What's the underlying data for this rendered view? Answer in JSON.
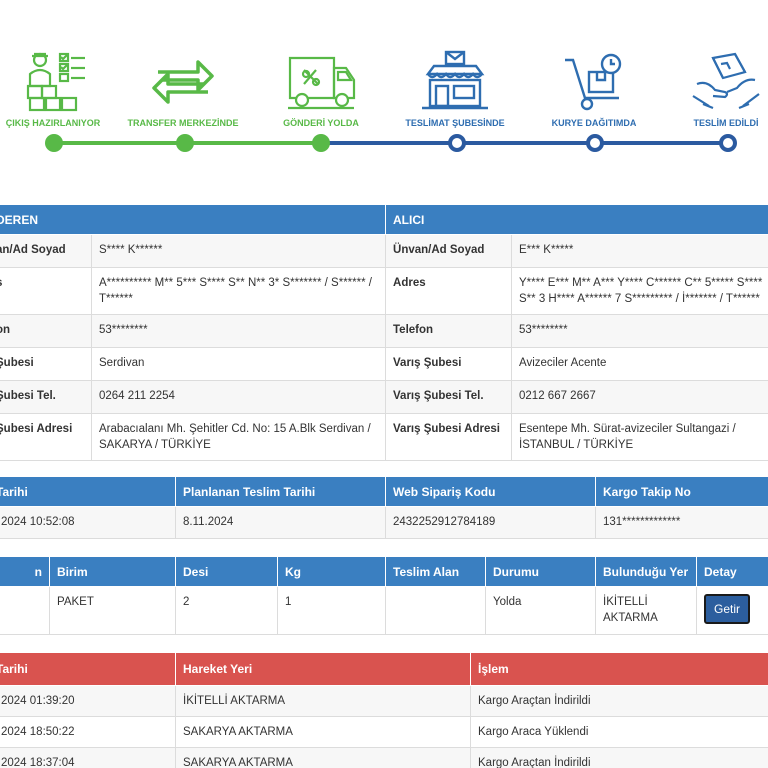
{
  "colors": {
    "done": "#58b947",
    "pending": "#2e6db0",
    "header_blue": "#3a7fc1",
    "header_red": "#d9534f"
  },
  "steps": [
    {
      "label": "ÇIKIŞ HAZIRLANIYOR",
      "icon": "warehouse-worker-icon",
      "status": "done"
    },
    {
      "label": "TRANSFER MERKEZİNDE",
      "icon": "transfer-arrows-icon",
      "status": "done"
    },
    {
      "label": "GÖNDERİ YOLDA",
      "icon": "delivery-truck-icon",
      "status": "done"
    },
    {
      "label": "TESLİMAT ŞUBESİNDE",
      "icon": "branch-building-icon",
      "status": "pending"
    },
    {
      "label": "KURYE DAĞITIMDA",
      "icon": "hand-truck-icon",
      "status": "pending"
    },
    {
      "label": "TESLİM EDİLDİ",
      "icon": "delivered-box-icon",
      "status": "pending"
    }
  ],
  "parties": {
    "sender_header": "DEREN",
    "receiver_header": "ALICI",
    "rows": [
      {
        "s_label": "an/Ad Soyad",
        "s_value": "S**** K******",
        "r_label": "Ünvan/Ad Soyad",
        "r_value": "E*** K*****"
      },
      {
        "s_label": "s",
        "s_value": "A********** M** 5*** S**** S** N** 3* S******* / S****** / T******",
        "r_label": "Adres",
        "r_value": "Y**** E*** M** A*** Y**** C****** C** 5***** S**** S** 3 H**** A****** 7 S********* / İ******* / T******"
      },
      {
        "s_label": "on",
        "s_value": "53********",
        "r_label": "Telefon",
        "r_value": "53********"
      },
      {
        "s_label": "Şubesi",
        "s_value": "Serdivan",
        "r_label": "Varış Şubesi",
        "r_value": "Avizeciler Acente"
      },
      {
        "s_label": "Şubesi Tel.",
        "s_value": "0264 211 2254",
        "r_label": "Varış Şubesi Tel.",
        "r_value": "0212 667 2667"
      },
      {
        "s_label": "Şubesi Adresi",
        "s_value": "Arabacıalanı Mh. Şehitler Cd. No: 15 A.Blk Serdivan / SAKARYA / TÜRKİYE",
        "r_label": "Varış Şubesi Adresi",
        "r_value": "Esentepe Mh. Sürat-avizeciler Sultangazi / İSTANBUL / TÜRKİYE"
      }
    ]
  },
  "dates": {
    "headers": [
      "Tarihi",
      "Planlanan Teslim Tarihi",
      "Web Sipariş Kodu",
      "Kargo Takip No"
    ],
    "values": [
      "2024 10:52:08",
      "8.11.2024",
      "2432252912784189",
      "131*************"
    ]
  },
  "shipment": {
    "headers": [
      "n",
      "Birim",
      "Desi",
      "Kg",
      "Teslim Alan",
      "Durumu",
      "Bulunduğu Yer",
      "Detay"
    ],
    "row": {
      "c0": "",
      "unit": "PAKET",
      "desi": "2",
      "kg": "1",
      "receiver": "",
      "status": "Yolda",
      "location": "İKİTELLİ AKTARMA"
    },
    "detail_button": "Getir"
  },
  "movements": {
    "headers": [
      "Tarihi",
      "Hareket Yeri",
      "İşlem"
    ],
    "rows": [
      {
        "date": "2024 01:39:20",
        "place": "İKİTELLİ AKTARMA",
        "action": "Kargo Araçtan İndirildi"
      },
      {
        "date": "2024 18:50:22",
        "place": "SAKARYA AKTARMA",
        "action": "Kargo Araca Yüklendi"
      },
      {
        "date": "2024 18:37:04",
        "place": "SAKARYA AKTARMA",
        "action": "Kargo Araçtan İndirildi"
      }
    ]
  }
}
